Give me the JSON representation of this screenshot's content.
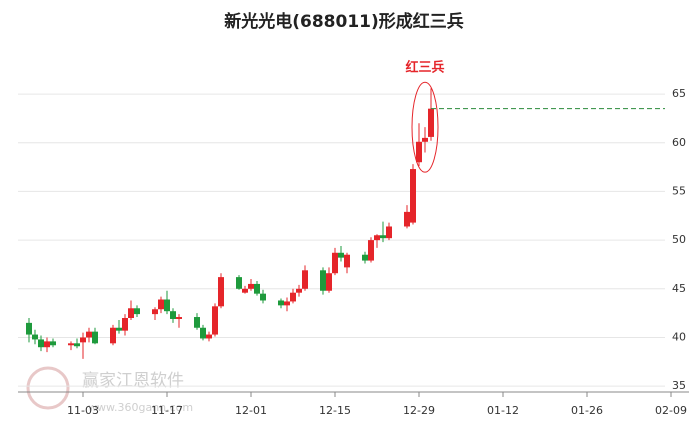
{
  "chart_data": {
    "type": "candlestick",
    "title": "新光光电(688011)形成红三兵",
    "annotation": "红三兵",
    "watermark": "赢家江恩软件",
    "watermark_url": "www.360gann.com",
    "x": [
      "10-25",
      "10-26",
      "10-27",
      "10-28",
      "10-29",
      "11-01",
      "11-02",
      "11-03",
      "11-04",
      "11-05",
      "11-08",
      "11-09",
      "11-10",
      "11-11",
      "11-12",
      "11-15",
      "11-16",
      "11-17",
      "11-18",
      "11-19",
      "11-22",
      "11-23",
      "11-24",
      "11-25",
      "11-26",
      "11-29",
      "11-30",
      "12-01",
      "12-02",
      "12-03",
      "12-06",
      "12-07",
      "12-08",
      "12-09",
      "12-10",
      "12-13",
      "12-14",
      "12-15",
      "12-16",
      "12-17",
      "12-20",
      "12-21",
      "12-22",
      "12-23",
      "12-24",
      "12-27",
      "12-28",
      "12-29",
      "12-30",
      "12-31"
    ],
    "open": [
      41.5,
      40.3,
      39.8,
      39.0,
      39.6,
      39.2,
      39.4,
      39.5,
      40.0,
      40.6,
      39.4,
      41.0,
      40.7,
      42.0,
      43.0,
      42.4,
      42.9,
      43.9,
      42.7,
      41.9,
      42.1,
      41.0,
      39.9,
      40.3,
      43.2,
      46.2,
      44.6,
      45.0,
      45.5,
      44.5,
      43.8,
      43.3,
      43.7,
      44.6,
      45.0,
      46.9,
      44.8,
      46.6,
      48.7,
      47.2,
      48.5,
      47.9,
      50.0,
      50.5,
      50.2,
      51.4,
      51.8,
      58.0,
      60.1,
      60.6
    ],
    "high": [
      42.0,
      40.8,
      40.2,
      40.0,
      39.9,
      39.6,
      39.9,
      40.5,
      41.0,
      41.0,
      41.3,
      41.8,
      42.4,
      43.8,
      43.3,
      43.1,
      44.2,
      44.8,
      43.0,
      42.4,
      42.5,
      41.3,
      40.6,
      43.5,
      46.6,
      46.4,
      45.3,
      46.0,
      45.8,
      44.9,
      44.0,
      44.1,
      45.0,
      45.4,
      47.4,
      47.2,
      47.2,
      49.2,
      49.4,
      48.7,
      48.8,
      50.3,
      50.6,
      51.9,
      51.8,
      53.6,
      57.8,
      62.0,
      61.6,
      65.6
    ],
    "low": [
      39.5,
      39.3,
      38.6,
      38.5,
      39.0,
      38.7,
      38.9,
      37.8,
      39.5,
      39.3,
      39.2,
      40.4,
      40.2,
      41.8,
      42.1,
      41.8,
      42.5,
      42.4,
      41.5,
      41.0,
      40.8,
      39.7,
      39.6,
      40.1,
      43.0,
      44.9,
      44.5,
      44.8,
      44.3,
      43.5,
      43.0,
      42.7,
      43.5,
      44.2,
      44.8,
      44.4,
      44.6,
      46.4,
      47.8,
      46.6,
      47.6,
      47.7,
      49.2,
      49.8,
      50.0,
      51.2,
      51.6,
      57.6,
      59.0,
      60.2
    ],
    "close": [
      40.3,
      39.8,
      39.0,
      39.6,
      39.2,
      39.4,
      39.1,
      40.0,
      40.6,
      39.4,
      41.0,
      40.7,
      42.0,
      43.0,
      42.4,
      42.9,
      43.9,
      42.7,
      41.9,
      42.1,
      41.0,
      39.9,
      40.3,
      43.2,
      46.2,
      45.0,
      45.0,
      45.5,
      44.5,
      43.8,
      43.3,
      43.7,
      44.6,
      45.0,
      46.9,
      44.8,
      46.6,
      48.7,
      48.2,
      48.5,
      47.9,
      50.0,
      50.5,
      50.2,
      51.4,
      52.9,
      57.3,
      60.1,
      60.5,
      63.5
    ],
    "up_color": "#e5252a",
    "down_color": "#1e9a3c",
    "xlim": [
      "10-22",
      "02-10"
    ],
    "xticks": [
      "11-03",
      "11-17",
      "12-01",
      "12-15",
      "12-29",
      "01-12",
      "01-26",
      "02-09"
    ],
    "ylim": [
      34.4,
      68.5
    ],
    "yticks": [
      35,
      40,
      45,
      50,
      55,
      60,
      65
    ],
    "grid": true
  }
}
